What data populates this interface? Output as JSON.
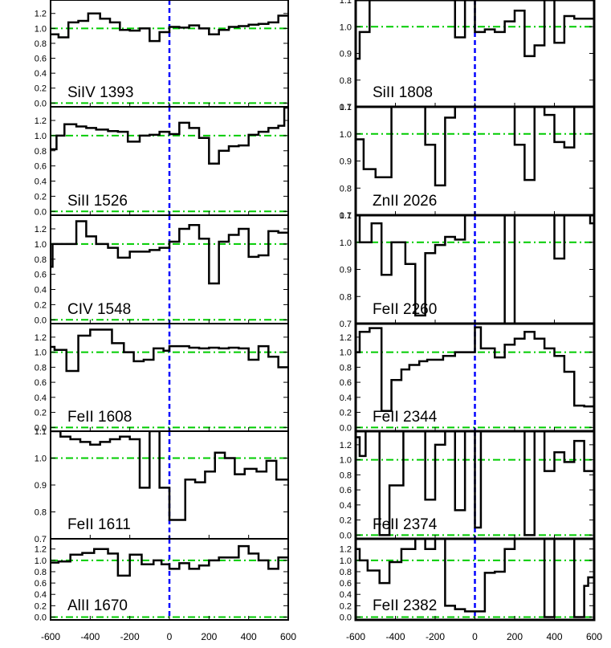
{
  "colors": {
    "spectrum": "#000000",
    "zero_velocity": "#0000ff",
    "reference": "#00cc00",
    "frame": "#000000"
  },
  "x_axis": {
    "range": [
      -600,
      600
    ],
    "ticks": [
      "-600",
      "-400",
      "-200",
      "0",
      "200",
      "400",
      "600"
    ],
    "tick_values": [
      -600,
      -400,
      -200,
      0,
      200,
      400,
      600
    ]
  },
  "chart_data": [
    {
      "type": "line",
      "drawstyle": "steps",
      "label": "SiIV 1393",
      "ylim": [
        -0.05,
        1.38
      ],
      "yticks": [
        0.0,
        0.2,
        0.4,
        0.6,
        0.8,
        1.0,
        1.2
      ],
      "ytick_labels": [
        "0.0",
        "0.2",
        "0.4",
        "0.6",
        "0.8",
        "1.0",
        "1.2"
      ],
      "ref_lines": [
        0.0,
        1.0
      ],
      "x": [
        -600,
        -560,
        -510,
        -460,
        -410,
        -350,
        -300,
        -250,
        -200,
        -150,
        -100,
        -50,
        0,
        50,
        100,
        150,
        200,
        250,
        300,
        350,
        400,
        450,
        500,
        550,
        600
      ],
      "y": [
        0.92,
        0.88,
        1.08,
        1.1,
        1.2,
        1.13,
        1.08,
        0.98,
        0.97,
        1.0,
        0.83,
        0.95,
        1.02,
        1.01,
        1.04,
        1.0,
        0.92,
        0.98,
        1.02,
        1.03,
        1.05,
        1.06,
        1.08,
        1.17,
        1.17
      ]
    },
    {
      "type": "line",
      "drawstyle": "steps",
      "label": "SiII 1808",
      "ylim": [
        0.7,
        1.1
      ],
      "yticks": [
        0.7,
        0.8,
        0.9,
        1.0,
        1.1
      ],
      "ytick_labels": [
        "0.7",
        "0.8",
        "0.9",
        "1.0",
        "1.1"
      ],
      "ref_lines": [
        1.0
      ],
      "x": [
        -600,
        -580,
        -530,
        -470,
        -420,
        -370,
        -310,
        -250,
        -200,
        -150,
        -100,
        -50,
        0,
        50,
        100,
        150,
        200,
        250,
        300,
        350,
        400,
        450,
        500,
        550,
        580
      ],
      "y": [
        0.88,
        0.98,
        1.16,
        1.15,
        1.15,
        1.15,
        1.16,
        1.15,
        1.16,
        1.17,
        0.96,
        1.16,
        0.98,
        0.99,
        0.98,
        1.02,
        1.06,
        0.89,
        0.93,
        1.14,
        0.94,
        1.04,
        1.03,
        1.03,
        1.03
      ]
    },
    {
      "type": "line",
      "drawstyle": "steps",
      "label": "SiII 1526",
      "ylim": [
        -0.05,
        1.38
      ],
      "yticks": [
        0.0,
        0.2,
        0.4,
        0.6,
        0.8,
        1.0,
        1.2
      ],
      "ytick_labels": [
        "0.0",
        "0.2",
        "0.4",
        "0.6",
        "0.8",
        "1.0",
        "1.2"
      ],
      "ref_lines": [
        0.0,
        1.0
      ],
      "x": [
        -600,
        -570,
        -530,
        -470,
        -420,
        -370,
        -310,
        -260,
        -210,
        -150,
        -100,
        -50,
        0,
        50,
        100,
        150,
        200,
        250,
        300,
        350,
        400,
        450,
        500,
        550,
        580
      ],
      "y": [
        0.82,
        1.0,
        1.15,
        1.12,
        1.1,
        1.08,
        1.06,
        1.05,
        0.92,
        1.0,
        1.01,
        1.05,
        1.02,
        1.17,
        1.1,
        0.97,
        0.63,
        0.8,
        0.86,
        0.87,
        1.01,
        1.05,
        1.1,
        1.13,
        1.37
      ]
    },
    {
      "type": "line",
      "drawstyle": "steps",
      "label": "ZnII 2026",
      "ylim": [
        0.7,
        1.1
      ],
      "yticks": [
        0.7,
        0.8,
        0.9,
        1.0,
        1.1
      ],
      "ytick_labels": [
        "0.7",
        "0.8",
        "0.9",
        "1.0",
        "1.1"
      ],
      "ref_lines": [
        1.0
      ],
      "x": [
        -600,
        -560,
        -500,
        -420,
        -350,
        -300,
        -250,
        -200,
        -150,
        -100,
        -50,
        0,
        50,
        100,
        150,
        200,
        250,
        300,
        350,
        400,
        450,
        500,
        550,
        580
      ],
      "y": [
        0.98,
        0.87,
        0.84,
        1.1,
        1.1,
        1.1,
        0.96,
        0.81,
        1.06,
        1.1,
        1.1,
        1.1,
        1.1,
        1.1,
        1.1,
        0.96,
        0.83,
        1.1,
        1.07,
        0.97,
        0.95,
        1.1,
        1.1,
        1.1
      ]
    },
    {
      "type": "line",
      "drawstyle": "steps",
      "label": "CIV 1548",
      "ylim": [
        -0.05,
        1.38
      ],
      "yticks": [
        0.0,
        0.2,
        0.4,
        0.6,
        0.8,
        1.0,
        1.2
      ],
      "ytick_labels": [
        "0.0",
        "0.2",
        "0.4",
        "0.6",
        "0.8",
        "1.0",
        "1.2"
      ],
      "ref_lines": [
        0.0,
        1.0
      ],
      "x": [
        -600,
        -590,
        -530,
        -470,
        -420,
        -370,
        -310,
        -260,
        -200,
        -150,
        -100,
        -50,
        0,
        50,
        100,
        150,
        200,
        250,
        300,
        350,
        400,
        450,
        500,
        550,
        580
      ],
      "y": [
        0.7,
        1.0,
        1.0,
        1.3,
        1.1,
        1.0,
        0.95,
        0.82,
        0.9,
        0.9,
        0.92,
        0.95,
        1.03,
        1.2,
        1.25,
        1.07,
        0.48,
        1.03,
        1.12,
        1.2,
        0.83,
        0.85,
        1.17,
        1.15,
        1.15
      ]
    },
    {
      "type": "line",
      "drawstyle": "steps",
      "label": "FeII 2260",
      "ylim": [
        0.7,
        1.1
      ],
      "yticks": [
        0.7,
        0.8,
        0.9,
        1.0,
        1.1
      ],
      "ytick_labels": [
        "0.7",
        "0.8",
        "0.9",
        "1.0",
        "1.1"
      ],
      "ref_lines": [
        1.0
      ],
      "x": [
        -600,
        -580,
        -520,
        -470,
        -420,
        -350,
        -300,
        -250,
        -200,
        -150,
        -100,
        -50,
        0,
        50,
        100,
        150,
        200,
        250,
        300,
        350,
        400,
        450,
        500,
        550,
        580
      ],
      "y": [
        1.1,
        1.0,
        1.07,
        0.88,
        1.0,
        0.92,
        0.73,
        0.96,
        0.99,
        1.02,
        1.01,
        1.1,
        1.1,
        1.1,
        1.1,
        0.7,
        1.1,
        1.1,
        1.1,
        1.1,
        0.94,
        1.1,
        1.1,
        1.1,
        1.07
      ]
    },
    {
      "type": "line",
      "drawstyle": "steps",
      "label": "FeII 1608",
      "ylim": [
        -0.05,
        1.38
      ],
      "yticks": [
        0.0,
        0.2,
        0.4,
        0.6,
        0.8,
        1.0,
        1.2
      ],
      "ytick_labels": [
        "0.0",
        "0.2",
        "0.4",
        "0.6",
        "0.8",
        "1.0",
        "1.2"
      ],
      "ref_lines": [
        0.0,
        1.0
      ],
      "x": [
        -600,
        -580,
        -520,
        -460,
        -400,
        -340,
        -290,
        -230,
        -180,
        -130,
        -80,
        -30,
        0,
        50,
        100,
        150,
        200,
        250,
        300,
        350,
        400,
        450,
        500,
        550,
        590
      ],
      "y": [
        1.07,
        1.03,
        0.75,
        1.22,
        1.3,
        1.3,
        1.12,
        1.0,
        0.88,
        0.9,
        1.05,
        1.02,
        1.08,
        1.08,
        1.06,
        1.05,
        1.06,
        1.05,
        1.06,
        1.05,
        0.9,
        1.08,
        0.94,
        0.8,
        0.8
      ]
    },
    {
      "type": "line",
      "drawstyle": "steps",
      "label": "FeII 2344",
      "ylim": [
        -0.05,
        1.38
      ],
      "yticks": [
        0.0,
        0.2,
        0.4,
        0.6,
        0.8,
        1.0,
        1.2
      ],
      "ytick_labels": [
        "0.0",
        "0.2",
        "0.4",
        "0.6",
        "0.8",
        "1.0",
        "1.2"
      ],
      "ref_lines": [
        0.0,
        1.0
      ],
      "x": [
        -600,
        -580,
        -530,
        -470,
        -420,
        -370,
        -330,
        -280,
        -240,
        -200,
        -160,
        -100,
        0,
        30,
        100,
        150,
        200,
        250,
        300,
        350,
        400,
        450,
        500,
        550,
        570
      ],
      "y": [
        1.0,
        1.27,
        1.32,
        0.22,
        0.63,
        0.77,
        0.83,
        0.88,
        0.9,
        0.9,
        0.95,
        1.0,
        1.33,
        1.05,
        0.93,
        1.1,
        1.18,
        1.27,
        1.18,
        1.05,
        0.95,
        0.74,
        0.29,
        0.28,
        0.28
      ]
    },
    {
      "type": "line",
      "drawstyle": "steps",
      "label": "FeII 1611",
      "ylim": [
        0.7,
        1.1
      ],
      "yticks": [
        0.7,
        0.8,
        0.9,
        1.0,
        1.1
      ],
      "ytick_labels": [
        "0.7",
        "0.8",
        "0.9",
        "1.0",
        "1.1"
      ],
      "ref_lines": [
        1.0
      ],
      "x": [
        -600,
        -550,
        -500,
        -450,
        -400,
        -350,
        -300,
        -250,
        -200,
        -150,
        -100,
        -50,
        0,
        30,
        80,
        130,
        180,
        230,
        280,
        330,
        380,
        440,
        490,
        540,
        580
      ],
      "y": [
        1.1,
        1.08,
        1.07,
        1.06,
        1.05,
        1.06,
        1.07,
        1.08,
        1.07,
        0.89,
        1.1,
        0.89,
        0.77,
        0.77,
        0.92,
        0.91,
        0.95,
        1.02,
        1.0,
        0.94,
        0.96,
        0.95,
        0.99,
        0.92,
        0.92
      ]
    },
    {
      "type": "line",
      "drawstyle": "steps",
      "label": "FeII 2374",
      "ylim": [
        -0.05,
        1.38
      ],
      "yticks": [
        0.0,
        0.2,
        0.4,
        0.6,
        0.8,
        1.0,
        1.2
      ],
      "ytick_labels": [
        "0.0",
        "0.2",
        "0.4",
        "0.6",
        "0.8",
        "1.0",
        "1.2"
      ],
      "ref_lines": [
        0.0,
        1.0
      ],
      "x": [
        -600,
        -580,
        -550,
        -480,
        -430,
        -360,
        -300,
        -250,
        -200,
        -150,
        -100,
        -50,
        0,
        30,
        80,
        150,
        200,
        250,
        300,
        350,
        400,
        450,
        500,
        550,
        570
      ],
      "y": [
        1.3,
        1.05,
        1.38,
        0.0,
        0.66,
        1.38,
        1.38,
        0.47,
        1.2,
        1.38,
        0.33,
        1.38,
        0.1,
        1.38,
        1.38,
        1.38,
        1.38,
        0.0,
        1.38,
        0.85,
        1.1,
        0.97,
        1.25,
        0.85,
        0.85
      ]
    },
    {
      "type": "line",
      "drawstyle": "steps",
      "label": "AlII 1670",
      "ylim": [
        -0.05,
        1.38
      ],
      "yticks": [
        0.0,
        0.2,
        0.4,
        0.6,
        0.8,
        1.0,
        1.2
      ],
      "ytick_labels": [
        "0.0",
        "0.2",
        "0.4",
        "0.6",
        "0.8",
        "1.0",
        "1.2"
      ],
      "ref_lines": [
        0.0,
        1.0
      ],
      "x": [
        -600,
        -560,
        -500,
        -440,
        -380,
        -310,
        -260,
        -200,
        -140,
        -80,
        -40,
        0,
        50,
        100,
        150,
        200,
        250,
        300,
        350,
        400,
        450,
        500,
        550,
        580
      ],
      "y": [
        0.96,
        0.98,
        1.1,
        1.13,
        1.2,
        1.12,
        0.73,
        1.1,
        0.93,
        1.0,
        0.93,
        0.85,
        0.95,
        0.85,
        0.91,
        1.0,
        1.05,
        1.05,
        1.25,
        1.12,
        1.0,
        0.85,
        1.05,
        1.05
      ]
    },
    {
      "type": "line",
      "drawstyle": "steps",
      "label": "FeII 2382",
      "ylim": [
        -0.05,
        1.38
      ],
      "yticks": [
        0.0,
        0.2,
        0.4,
        0.6,
        0.8,
        1.0,
        1.2
      ],
      "ytick_labels": [
        "0.0",
        "0.2",
        "0.4",
        "0.6",
        "0.8",
        "1.0",
        "1.2"
      ],
      "ref_lines": [
        0.0,
        1.0
      ],
      "x": [
        -600,
        -580,
        -540,
        -480,
        -430,
        -370,
        -300,
        -250,
        -200,
        -150,
        -100,
        -50,
        0,
        50,
        100,
        150,
        200,
        250,
        300,
        350,
        400,
        450,
        500,
        550,
        570
      ],
      "y": [
        1.2,
        1.0,
        0.82,
        0.6,
        0.97,
        1.2,
        1.38,
        1.2,
        1.38,
        0.2,
        0.14,
        0.1,
        0.1,
        0.78,
        0.8,
        1.2,
        1.38,
        1.38,
        1.38,
        0.0,
        1.38,
        1.38,
        0.0,
        0.55,
        0.7
      ]
    }
  ]
}
